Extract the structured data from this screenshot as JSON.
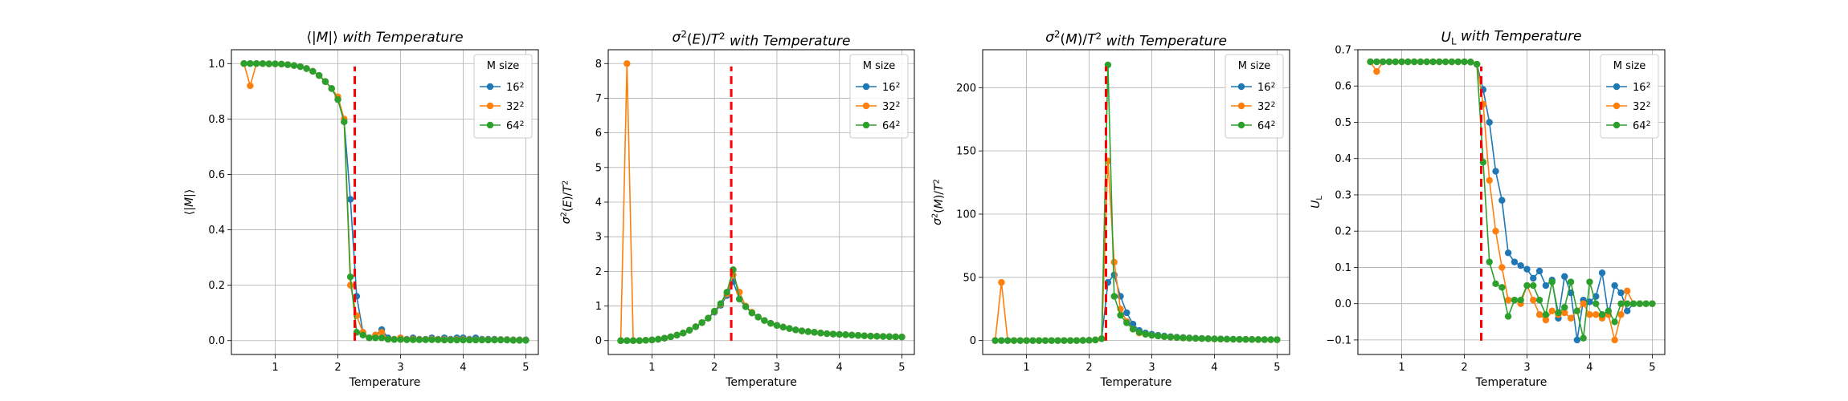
{
  "chart_data": [
    {
      "type": "line",
      "title": "⟨|M|⟩ with Temperature",
      "xlabel": "Temperature",
      "ylabel": "⟨|M|⟩",
      "xlim": [
        0.3,
        5.2
      ],
      "ylim": [
        -0.05,
        1.05
      ],
      "xticks": [
        "1",
        "2",
        "3",
        "4",
        "5"
      ],
      "yticks": [
        "0.0",
        "0.2",
        "0.4",
        "0.6",
        "0.8",
        "1.0"
      ],
      "critical_temperature": 2.269,
      "grid": true,
      "legend": {
        "title": "M size",
        "placement": "top-right"
      },
      "x": [
        0.5,
        0.6,
        0.7,
        0.8,
        0.9,
        1.0,
        1.1,
        1.2,
        1.3,
        1.4,
        1.5,
        1.6,
        1.7,
        1.8,
        1.9,
        2.0,
        2.1,
        2.2,
        2.3,
        2.4,
        2.5,
        2.6,
        2.7,
        2.8,
        2.9,
        3.0,
        3.1,
        3.2,
        3.3,
        3.4,
        3.5,
        3.6,
        3.7,
        3.8,
        3.9,
        4.0,
        4.1,
        4.2,
        4.3,
        4.4,
        4.5,
        4.6,
        4.7,
        4.8,
        4.9,
        5.0
      ],
      "series": [
        {
          "name": "16²",
          "color": "#1f77b4",
          "values": [
            1.0,
            1.0,
            1.0,
            1.0,
            0.999,
            0.999,
            0.998,
            0.996,
            0.993,
            0.989,
            0.982,
            0.972,
            0.957,
            0.935,
            0.91,
            0.87,
            0.79,
            0.51,
            0.16,
            0.03,
            0.01,
            0.02,
            0.04,
            0.01,
            0.005,
            0.01,
            0.005,
            0.01,
            0.005,
            0.005,
            0.01,
            0.005,
            0.01,
            0.005,
            0.01,
            0.01,
            0.005,
            0.01,
            0.005,
            0.005,
            0.005,
            0.004,
            0.004,
            0.003,
            0.003,
            0.003
          ]
        },
        {
          "name": "32²",
          "color": "#ff7f0e",
          "values": [
            1.0,
            0.92,
            1.0,
            1.0,
            0.999,
            0.999,
            0.998,
            0.996,
            0.993,
            0.989,
            0.982,
            0.972,
            0.957,
            0.935,
            0.91,
            0.88,
            0.8,
            0.2,
            0.09,
            0.03,
            0.01,
            0.02,
            0.03,
            0.005,
            0.005,
            0.01,
            0.004,
            0.005,
            0.004,
            0.004,
            0.005,
            0.004,
            0.004,
            0.003,
            0.004,
            0.004,
            0.003,
            0.003,
            0.003,
            0.003,
            0.003,
            0.003,
            0.003,
            0.002,
            0.002,
            0.002
          ]
        },
        {
          "name": "64²",
          "color": "#2ca02c",
          "values": [
            1.0,
            1.0,
            1.0,
            1.0,
            0.999,
            0.999,
            0.998,
            0.996,
            0.993,
            0.989,
            0.982,
            0.972,
            0.957,
            0.935,
            0.91,
            0.87,
            0.79,
            0.23,
            0.03,
            0.02,
            0.01,
            0.01,
            0.01,
            0.005,
            0.004,
            0.004,
            0.003,
            0.003,
            0.003,
            0.003,
            0.003,
            0.003,
            0.002,
            0.002,
            0.002,
            0.002,
            0.002,
            0.002,
            0.002,
            0.002,
            0.002,
            0.002,
            0.002,
            0.001,
            0.001,
            0.001
          ]
        }
      ]
    },
    {
      "type": "line",
      "title": "σ²(E)/T² with Temperature",
      "xlabel": "Temperature",
      "ylabel": "σ²(E)/T²",
      "xlim": [
        0.3,
        5.2
      ],
      "ylim": [
        -0.4,
        8.4
      ],
      "xticks": [
        "1",
        "2",
        "3",
        "4",
        "5"
      ],
      "yticks": [
        "0",
        "1",
        "2",
        "3",
        "4",
        "5",
        "6",
        "7",
        "8"
      ],
      "critical_temperature": 2.269,
      "grid": true,
      "legend": {
        "title": "M size",
        "placement": "top-right"
      },
      "x": [
        0.5,
        0.6,
        0.7,
        0.8,
        0.9,
        1.0,
        1.1,
        1.2,
        1.3,
        1.4,
        1.5,
        1.6,
        1.7,
        1.8,
        1.9,
        2.0,
        2.1,
        2.2,
        2.3,
        2.4,
        2.5,
        2.6,
        2.7,
        2.8,
        2.9,
        3.0,
        3.1,
        3.2,
        3.3,
        3.4,
        3.5,
        3.6,
        3.7,
        3.8,
        3.9,
        4.0,
        4.1,
        4.2,
        4.3,
        4.4,
        4.5,
        4.6,
        4.7,
        4.8,
        4.9,
        5.0
      ],
      "series": [
        {
          "name": "16²",
          "color": "#1f77b4",
          "values": [
            0.0,
            0.0,
            0.0,
            0.0,
            0.01,
            0.02,
            0.04,
            0.07,
            0.11,
            0.16,
            0.22,
            0.3,
            0.4,
            0.52,
            0.65,
            0.82,
            1.02,
            1.3,
            1.7,
            1.2,
            0.98,
            0.8,
            0.68,
            0.58,
            0.5,
            0.44,
            0.39,
            0.35,
            0.31,
            0.28,
            0.26,
            0.24,
            0.22,
            0.2,
            0.19,
            0.18,
            0.17,
            0.16,
            0.15,
            0.14,
            0.13,
            0.125,
            0.12,
            0.115,
            0.11,
            0.105
          ]
        },
        {
          "name": "32²",
          "color": "#ff7f0e",
          "values": [
            0.0,
            8.0,
            0.0,
            0.0,
            0.01,
            0.02,
            0.04,
            0.07,
            0.11,
            0.16,
            0.22,
            0.3,
            0.4,
            0.52,
            0.65,
            0.84,
            1.05,
            1.35,
            1.9,
            1.4,
            1.0,
            0.82,
            0.68,
            0.58,
            0.5,
            0.44,
            0.39,
            0.35,
            0.31,
            0.28,
            0.26,
            0.24,
            0.22,
            0.2,
            0.19,
            0.18,
            0.17,
            0.16,
            0.15,
            0.14,
            0.13,
            0.125,
            0.12,
            0.115,
            0.11,
            0.105
          ]
        },
        {
          "name": "64²",
          "color": "#2ca02c",
          "values": [
            0.0,
            0.0,
            0.0,
            0.0,
            0.01,
            0.02,
            0.04,
            0.07,
            0.11,
            0.16,
            0.22,
            0.3,
            0.4,
            0.52,
            0.65,
            0.85,
            1.07,
            1.4,
            2.05,
            1.2,
            0.98,
            0.8,
            0.68,
            0.58,
            0.5,
            0.44,
            0.39,
            0.35,
            0.31,
            0.28,
            0.26,
            0.24,
            0.22,
            0.2,
            0.19,
            0.18,
            0.17,
            0.16,
            0.15,
            0.14,
            0.13,
            0.125,
            0.12,
            0.115,
            0.11,
            0.105
          ]
        }
      ]
    },
    {
      "type": "line",
      "title": "σ²(M)/T² with Temperature",
      "xlabel": "Temperature",
      "ylabel": "σ²(M)/T²",
      "xlim": [
        0.3,
        5.2
      ],
      "ylim": [
        -11,
        230
      ],
      "xticks": [
        "1",
        "2",
        "3",
        "4",
        "5"
      ],
      "yticks": [
        "0",
        "50",
        "100",
        "150",
        "200"
      ],
      "critical_temperature": 2.269,
      "grid": true,
      "legend": {
        "title": "M size",
        "placement": "top-right"
      },
      "x": [
        0.5,
        0.6,
        0.7,
        0.8,
        0.9,
        1.0,
        1.1,
        1.2,
        1.3,
        1.4,
        1.5,
        1.6,
        1.7,
        1.8,
        1.9,
        2.0,
        2.1,
        2.2,
        2.3,
        2.4,
        2.5,
        2.6,
        2.7,
        2.8,
        2.9,
        3.0,
        3.1,
        3.2,
        3.3,
        3.4,
        3.5,
        3.6,
        3.7,
        3.8,
        3.9,
        4.0,
        4.1,
        4.2,
        4.3,
        4.4,
        4.5,
        4.6,
        4.7,
        4.8,
        4.9,
        5.0
      ],
      "series": [
        {
          "name": "16²",
          "color": "#1f77b4",
          "values": [
            0.0,
            0.0,
            0.0,
            0.0,
            0.0,
            0.0,
            0.0,
            0.0,
            0.0,
            0.0,
            0.0,
            0.0,
            0.0,
            0.0,
            0.1,
            0.2,
            0.5,
            1.5,
            46,
            52,
            35,
            22,
            13,
            8,
            6,
            5,
            4.2,
            3.6,
            3.1,
            2.7,
            2.4,
            2.1,
            1.9,
            1.7,
            1.55,
            1.4,
            1.3,
            1.2,
            1.1,
            1.0,
            0.95,
            0.9,
            0.85,
            0.8,
            0.75,
            0.7
          ]
        },
        {
          "name": "32²",
          "color": "#ff7f0e",
          "values": [
            0.0,
            46,
            0.0,
            0.0,
            0.0,
            0.0,
            0.0,
            0.0,
            0.0,
            0.0,
            0.0,
            0.0,
            0.0,
            0.0,
            0.1,
            0.2,
            0.5,
            1.5,
            142,
            62,
            25,
            15,
            9,
            6,
            5,
            4.2,
            3.6,
            3.1,
            2.7,
            2.4,
            2.1,
            1.9,
            1.7,
            1.55,
            1.4,
            1.3,
            1.2,
            1.1,
            1.0,
            0.95,
            0.9,
            0.85,
            0.8,
            0.75,
            0.7,
            0.65
          ]
        },
        {
          "name": "64²",
          "color": "#2ca02c",
          "values": [
            0.0,
            0.0,
            0.0,
            0.0,
            0.0,
            0.0,
            0.0,
            0.0,
            0.0,
            0.0,
            0.0,
            0.0,
            0.0,
            0.0,
            0.1,
            0.2,
            0.5,
            1.5,
            218,
            35,
            20,
            14,
            9,
            6.5,
            5,
            4.2,
            3.6,
            3.1,
            2.7,
            2.4,
            2.1,
            1.9,
            1.7,
            1.55,
            1.4,
            1.3,
            1.2,
            1.1,
            1.0,
            0.95,
            0.9,
            0.85,
            0.8,
            0.75,
            0.7,
            0.65
          ]
        }
      ]
    },
    {
      "type": "line",
      "title": "U_L with Temperature",
      "xlabel": "Temperature",
      "ylabel": "U_L",
      "xlim": [
        0.3,
        5.2
      ],
      "ylim": [
        -0.14,
        0.7
      ],
      "xticks": [
        "1",
        "2",
        "3",
        "4",
        "5"
      ],
      "yticks": [
        "−0.1",
        "0.0",
        "0.1",
        "0.2",
        "0.3",
        "0.4",
        "0.5",
        "0.6",
        "0.7"
      ],
      "critical_temperature": 2.269,
      "grid": true,
      "legend": {
        "title": "M size",
        "placement": "top-right"
      },
      "x": [
        0.5,
        0.6,
        0.7,
        0.8,
        0.9,
        1.0,
        1.1,
        1.2,
        1.3,
        1.4,
        1.5,
        1.6,
        1.7,
        1.8,
        1.9,
        2.0,
        2.1,
        2.2,
        2.3,
        2.4,
        2.5,
        2.6,
        2.7,
        2.8,
        2.9,
        3.0,
        3.1,
        3.2,
        3.3,
        3.4,
        3.5,
        3.6,
        3.7,
        3.8,
        3.9,
        4.0,
        4.1,
        4.2,
        4.3,
        4.4,
        4.5,
        4.6,
        4.7,
        4.8,
        4.9,
        5.0
      ],
      "series": [
        {
          "name": "16²",
          "color": "#1f77b4",
          "values": [
            0.6667,
            0.6667,
            0.6667,
            0.6667,
            0.6667,
            0.6667,
            0.6667,
            0.6667,
            0.6667,
            0.6667,
            0.6667,
            0.6667,
            0.6667,
            0.6667,
            0.6667,
            0.6667,
            0.666,
            0.66,
            0.59,
            0.5,
            0.365,
            0.285,
            0.14,
            0.115,
            0.105,
            0.095,
            0.07,
            0.09,
            0.05,
            0.065,
            -0.04,
            0.075,
            0.03,
            -0.1,
            0.01,
            0.005,
            0.02,
            0.085,
            -0.03,
            0.05,
            0.03,
            -0.02,
            0.0,
            0.0,
            0.0,
            0.0
          ]
        },
        {
          "name": "32²",
          "color": "#ff7f0e",
          "values": [
            0.6667,
            0.64,
            0.6667,
            0.6667,
            0.6667,
            0.6667,
            0.6667,
            0.6667,
            0.6667,
            0.6667,
            0.6667,
            0.6667,
            0.6667,
            0.6667,
            0.6667,
            0.6667,
            0.666,
            0.66,
            0.55,
            0.34,
            0.2,
            0.1,
            0.01,
            0.01,
            0.0,
            0.05,
            0.01,
            -0.03,
            -0.045,
            -0.02,
            -0.03,
            -0.025,
            -0.04,
            -0.02,
            0.0,
            -0.03,
            -0.03,
            -0.04,
            -0.03,
            -0.1,
            -0.03,
            0.035,
            0.0,
            0.0,
            0.0,
            0.0
          ]
        },
        {
          "name": "64²",
          "color": "#2ca02c",
          "values": [
            0.6667,
            0.6667,
            0.6667,
            0.6667,
            0.6667,
            0.6667,
            0.6667,
            0.6667,
            0.6667,
            0.6667,
            0.6667,
            0.6667,
            0.6667,
            0.6667,
            0.6667,
            0.6667,
            0.666,
            0.66,
            0.39,
            0.115,
            0.055,
            0.045,
            -0.035,
            0.01,
            0.01,
            0.05,
            0.05,
            0.01,
            -0.03,
            0.06,
            -0.025,
            -0.01,
            0.06,
            -0.02,
            -0.095,
            0.06,
            0.0,
            -0.03,
            -0.02,
            -0.05,
            0.0,
            0.0,
            0.0,
            0.0,
            0.0,
            0.0
          ]
        }
      ]
    }
  ]
}
